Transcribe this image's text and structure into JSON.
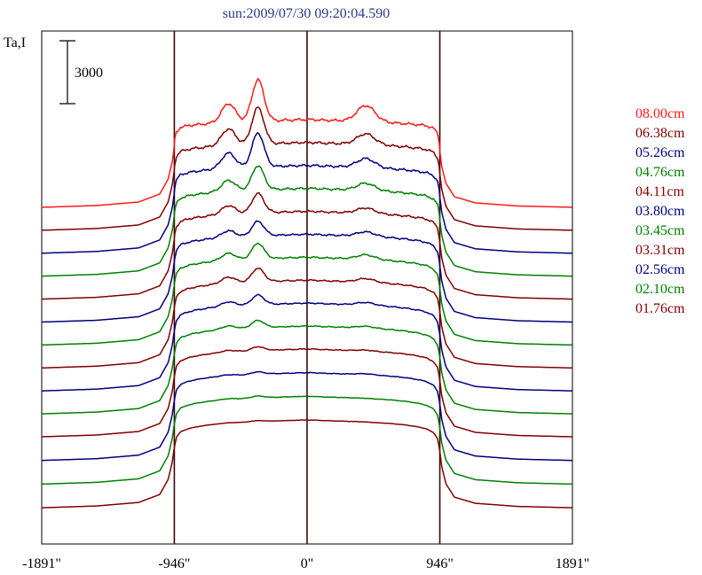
{
  "chart_data": {
    "type": "line",
    "title": "sun:2009/07/30 09:20:04.590",
    "ylabel": "Ta,I",
    "scale_bar_label": "3000",
    "scale_bar_value": 3000,
    "x_ticks": [
      {
        "value": -1891,
        "label": "-1891\""
      },
      {
        "value": -946,
        "label": "-946\""
      },
      {
        "value": 0,
        "label": "0\""
      },
      {
        "value": 946,
        "label": "946\""
      },
      {
        "value": 1891,
        "label": "1891\""
      }
    ],
    "xlim": [
      -1891,
      1891
    ],
    "vertical_markers": [
      -946,
      0,
      946
    ],
    "colors": {
      "red": "#ff1a1a",
      "maroon": "#800000",
      "navy": "#000080",
      "green": "#008000",
      "axis": "#000000",
      "marker": "#3a0a0a"
    },
    "series": [
      {
        "name": "08.00cm",
        "color": "#ff1a1a"
      },
      {
        "name": "06.38cm",
        "color": "#800000"
      },
      {
        "name": "05.26cm",
        "color": "#000080"
      },
      {
        "name": "04.76cm",
        "color": "#008000"
      },
      {
        "name": "04.11cm",
        "color": "#800000"
      },
      {
        "name": "03.80cm",
        "color": "#000080"
      },
      {
        "name": "03.45cm",
        "color": "#008000"
      },
      {
        "name": "03.31cm",
        "color": "#800000"
      },
      {
        "name": "02.56cm",
        "color": "#000080"
      },
      {
        "name": "02.10cm",
        "color": "#008000"
      },
      {
        "name": "01.76cm",
        "color": "#800000"
      },
      {
        "color": "#000080"
      },
      {
        "color": "#008000"
      },
      {
        "color": "#800000"
      }
    ],
    "profile_x": [
      -1891,
      -1500,
      -1200,
      -1050,
      -990,
      -960,
      -946,
      -930,
      -900,
      -850,
      -800,
      -700,
      -600,
      -500,
      -400,
      -300,
      -250,
      -200,
      -150,
      -100,
      -50,
      0,
      50,
      100,
      200,
      300,
      400,
      500,
      600,
      700,
      800,
      850,
      900,
      930,
      946,
      960,
      990,
      1050,
      1200,
      1500,
      1891
    ],
    "quiet_sun_profile": [
      0,
      0.02,
      0.06,
      0.15,
      0.32,
      0.52,
      0.68,
      0.8,
      0.86,
      0.89,
      0.91,
      0.935,
      0.95,
      0.96,
      0.97,
      0.975,
      0.98,
      0.98,
      0.985,
      0.985,
      0.99,
      0.99,
      0.99,
      0.985,
      0.98,
      0.975,
      0.97,
      0.96,
      0.95,
      0.935,
      0.91,
      0.89,
      0.85,
      0.78,
      0.64,
      0.46,
      0.27,
      0.12,
      0.05,
      0.015,
      0
    ],
    "source_peaks": [
      {
        "x": -350,
        "width": 60
      },
      {
        "x": 420,
        "width": 90
      }
    ],
    "series_params": [
      {
        "disk": 1.0,
        "limb_brightening": 0.1,
        "peak_main": 0.85,
        "peak_second": 0.18
      },
      {
        "disk": 1.0,
        "limb_brightening": 0.07,
        "peak_main": 0.75,
        "peak_second": 0.12
      },
      {
        "disk": 1.0,
        "limb_brightening": 0.06,
        "peak_main": 0.7,
        "peak_second": 0.1
      },
      {
        "disk": 1.0,
        "limb_brightening": 0.05,
        "peak_main": 0.5,
        "peak_second": 0.08
      },
      {
        "disk": 1.0,
        "limb_brightening": 0.04,
        "peak_main": 0.4,
        "peak_second": 0.06
      },
      {
        "disk": 1.0,
        "limb_brightening": 0.03,
        "peak_main": 0.3,
        "peak_second": 0.05
      },
      {
        "disk": 1.0,
        "limb_brightening": 0.02,
        "peak_main": 0.32,
        "peak_second": 0.05
      },
      {
        "disk": 1.0,
        "limb_brightening": 0.01,
        "peak_main": 0.28,
        "peak_second": 0.04
      },
      {
        "disk": 1.0,
        "limb_brightening": 0.0,
        "peak_main": 0.2,
        "peak_second": 0.03
      },
      {
        "disk": 1.0,
        "limb_brightening": 0.0,
        "peak_main": 0.15,
        "peak_second": 0.02
      },
      {
        "disk": 1.0,
        "limb_brightening": 0.0,
        "peak_main": 0.08,
        "peak_second": 0.01
      },
      {
        "disk": 1.0,
        "limb_brightening": 0.0,
        "peak_main": 0.05,
        "peak_second": 0.01
      },
      {
        "disk": 1.0,
        "limb_brightening": 0.0,
        "peak_main": 0.04,
        "peak_second": 0.0
      },
      {
        "disk": 1.0,
        "limb_brightening": 0.0,
        "peak_main": 0.02,
        "peak_second": 0.0
      }
    ]
  }
}
